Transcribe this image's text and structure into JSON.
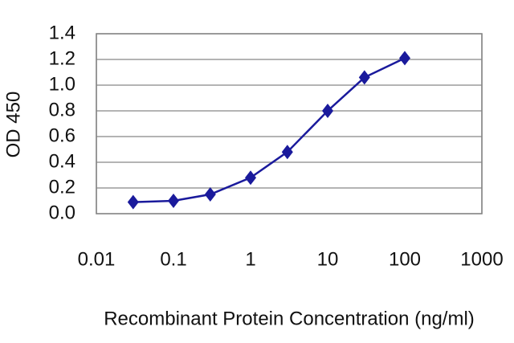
{
  "chart_data": {
    "type": "line",
    "xlabel": "Recombinant Protein Concentration (ng/ml)",
    "ylabel": "OD 450",
    "x": [
      0.03,
      0.1,
      0.3,
      1,
      3,
      10,
      30,
      100
    ],
    "series": [
      {
        "color": "#1a1a9c",
        "values": [
          0.09,
          0.1,
          0.15,
          0.28,
          0.48,
          0.8,
          1.06,
          1.21
        ]
      }
    ],
    "xscale": "log",
    "xlim": [
      0.01,
      1000
    ],
    "xticks": [
      0.01,
      0.1,
      1,
      10,
      100,
      1000
    ],
    "ylim": [
      0,
      1.4
    ],
    "yticks": [
      {
        "value": 0,
        "label": "0.0"
      },
      0.2,
      0.4,
      0.6,
      0.8,
      {
        "value": 1,
        "label": "1.0"
      },
      1.2,
      1.4
    ],
    "grid": true
  }
}
